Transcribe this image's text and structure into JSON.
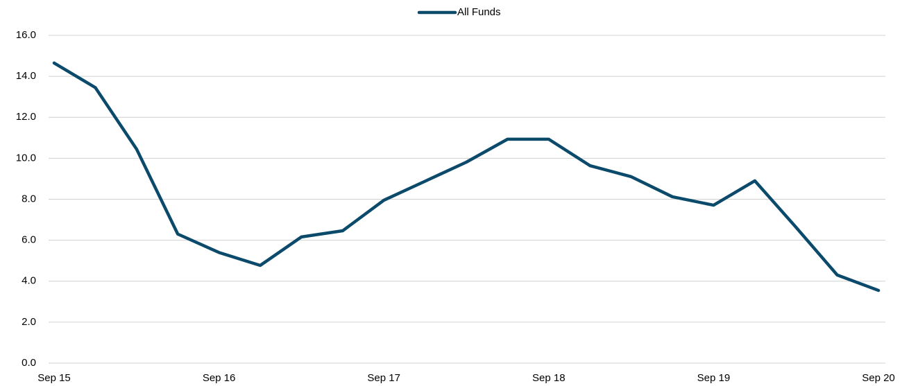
{
  "chart_data": {
    "type": "line",
    "categories": [
      "Sep 15",
      null,
      null,
      null,
      "Sep 16",
      null,
      null,
      null,
      "Sep 17",
      null,
      null,
      null,
      "Sep 18",
      null,
      null,
      null,
      "Sep 19",
      null,
      null,
      null,
      "Sep 20"
    ],
    "series": [
      {
        "name": "All Funds",
        "color": "#0b4a6b",
        "values": [
          14.65,
          13.45,
          10.45,
          6.3,
          5.4,
          4.77,
          6.16,
          6.46,
          7.95,
          8.88,
          9.81,
          10.93,
          10.93,
          9.64,
          9.1,
          8.12,
          7.71,
          8.9,
          6.63,
          4.3,
          3.55
        ]
      }
    ],
    "ylim": [
      0,
      16
    ],
    "yticks": [
      {
        "value": 0,
        "label": "0.0"
      },
      {
        "value": 2,
        "label": "2.0"
      },
      {
        "value": 4,
        "label": "4.0"
      },
      {
        "value": 6,
        "label": "6.0"
      },
      {
        "value": 8,
        "label": "8.0"
      },
      {
        "value": 10,
        "label": "10.0"
      },
      {
        "value": 12,
        "label": "12.0"
      },
      {
        "value": 14,
        "label": "14.0"
      },
      {
        "value": 16,
        "label": "16.0"
      }
    ],
    "grid": true,
    "legend": "top"
  }
}
